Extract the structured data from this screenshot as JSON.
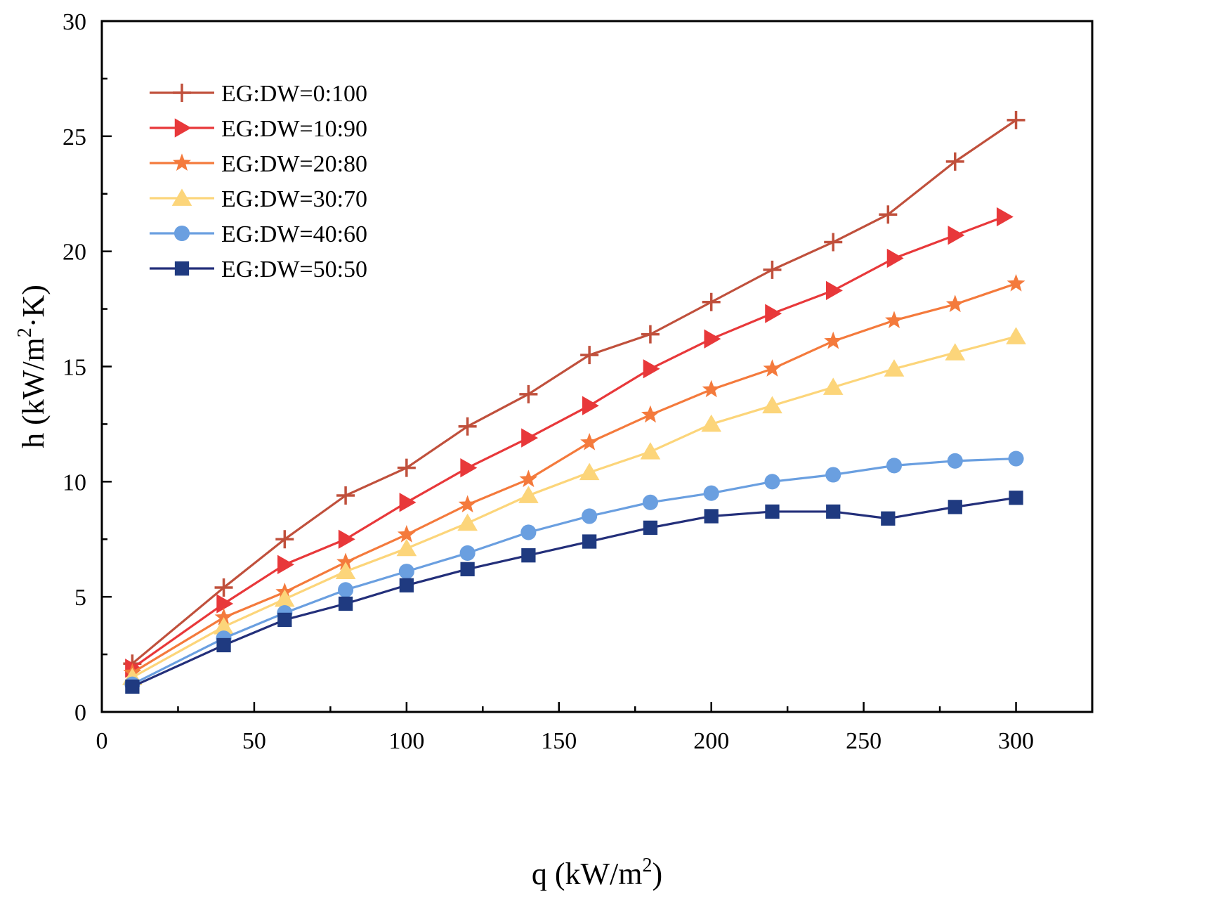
{
  "chart_data": {
    "type": "line",
    "title": "",
    "xlabel": "q (kW/m",
    "xlabel_sup": "2",
    "xlabel_end": ")",
    "ylabel": "h (kW/m",
    "ylabel_sup": "2",
    "ylabel_end": "·K)",
    "xlim": [
      0,
      325
    ],
    "ylim": [
      0,
      30
    ],
    "xticks": [
      0,
      50,
      100,
      150,
      200,
      250,
      300
    ],
    "yticks": [
      0,
      5,
      10,
      15,
      20,
      25,
      30
    ],
    "grid": false,
    "legend_position": "top-left",
    "series": [
      {
        "name": "EG:DW=0:100",
        "color": "#c0503c",
        "marker": "plus",
        "x": [
          10,
          40,
          60,
          80,
          100,
          120,
          140,
          160,
          180,
          200,
          220,
          240,
          258,
          280,
          300
        ],
        "y": [
          2.1,
          5.4,
          7.5,
          9.4,
          10.6,
          12.4,
          13.8,
          15.5,
          16.4,
          17.8,
          19.2,
          20.4,
          21.6,
          23.9,
          25.7
        ]
      },
      {
        "name": "EG:DW=10:90",
        "color": "#e8383a",
        "marker": "triangle-right",
        "x": [
          10,
          40,
          60,
          80,
          100,
          120,
          140,
          160,
          180,
          200,
          220,
          240,
          260,
          280,
          296
        ],
        "y": [
          1.9,
          4.7,
          6.4,
          7.5,
          9.1,
          10.6,
          11.9,
          13.3,
          14.9,
          16.2,
          17.3,
          18.3,
          19.7,
          20.7,
          21.5
        ]
      },
      {
        "name": "EG:DW=20:80",
        "color": "#f47a3c",
        "marker": "star",
        "x": [
          10,
          40,
          60,
          80,
          100,
          120,
          140,
          160,
          180,
          200,
          220,
          240,
          260,
          280,
          300
        ],
        "y": [
          1.7,
          4.1,
          5.2,
          6.5,
          7.7,
          9.0,
          10.1,
          11.7,
          12.9,
          14.0,
          14.9,
          16.1,
          17.0,
          17.7,
          18.6
        ]
      },
      {
        "name": "EG:DW=30:70",
        "color": "#fcd57a",
        "marker": "triangle-up",
        "x": [
          10,
          40,
          60,
          80,
          100,
          120,
          140,
          160,
          180,
          200,
          220,
          240,
          260,
          280,
          300
        ],
        "y": [
          1.5,
          3.7,
          4.9,
          6.1,
          7.1,
          8.2,
          9.4,
          10.4,
          11.3,
          12.5,
          13.3,
          14.1,
          14.9,
          15.6,
          16.3
        ]
      },
      {
        "name": "EG:DW=40:60",
        "color": "#6a9fe0",
        "marker": "circle",
        "x": [
          10,
          40,
          60,
          80,
          100,
          120,
          140,
          160,
          180,
          200,
          220,
          240,
          260,
          280,
          300
        ],
        "y": [
          1.2,
          3.2,
          4.3,
          5.3,
          6.1,
          6.9,
          7.8,
          8.5,
          9.1,
          9.5,
          10.0,
          10.3,
          10.7,
          10.9,
          11.0
        ]
      },
      {
        "name": "EG:DW=50:50",
        "color": "#232f7a",
        "markerColor": "#1f3a80",
        "marker": "square",
        "x": [
          10,
          40,
          60,
          80,
          100,
          120,
          140,
          160,
          180,
          200,
          220,
          240,
          258,
          280,
          300
        ],
        "y": [
          1.1,
          2.9,
          4.0,
          4.7,
          5.5,
          6.2,
          6.8,
          7.4,
          8.0,
          8.5,
          8.7,
          8.7,
          8.4,
          8.9,
          9.3
        ]
      }
    ]
  }
}
